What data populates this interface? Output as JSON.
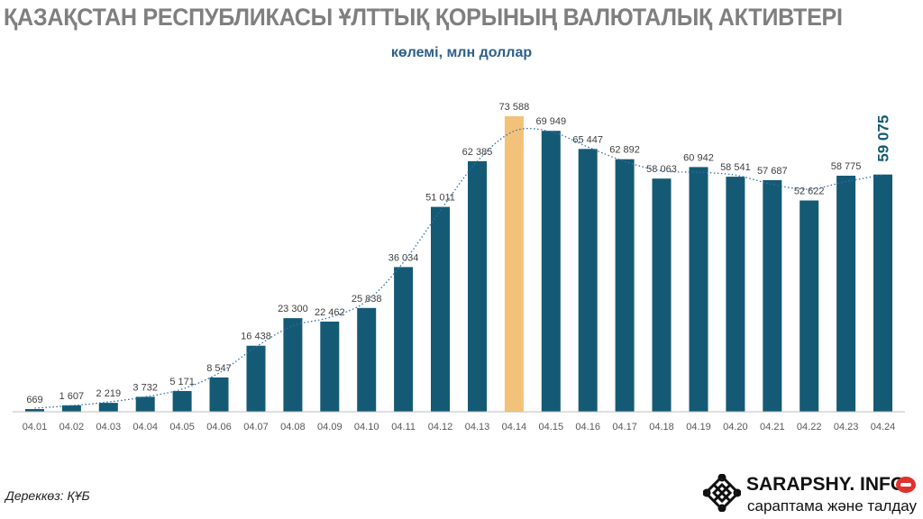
{
  "header": {
    "title": "ҚАЗАҚСТАН РЕСПУБЛИКАСЫ ҰЛТТЫҚ ҚОРЫНЫҢ ВАЛЮТАЛЫҚ АКТИВТЕРІ",
    "subtitle": "көлемі, млн доллар"
  },
  "footer": {
    "source": "Дереккөз: ҚҰБ",
    "brand_name": "SARAPSHY. INFO",
    "brand_tagline": "сарaптама және талдау"
  },
  "colors": {
    "bar": "#155a74",
    "highlight": "#f2c27a",
    "trend": "#2f6fb0",
    "title": "#7f7f7f",
    "subtitle": "#2e5f8a"
  },
  "chart_data": {
    "type": "bar",
    "categories": [
      "04.01",
      "04.02",
      "04.03",
      "04.04",
      "04.05",
      "04.06",
      "04.07",
      "04.08",
      "04.09",
      "04.10",
      "04.11",
      "04.12",
      "04.13",
      "04.14",
      "04.15",
      "04.16",
      "04.17",
      "04.18",
      "04.19",
      "04.20",
      "04.21",
      "04.22",
      "04.23",
      "04.24"
    ],
    "values": [
      669,
      1607,
      2219,
      3732,
      5171,
      8547,
      16438,
      23300,
      22462,
      25838,
      36034,
      51011,
      62385,
      73588,
      69949,
      65447,
      62892,
      58063,
      60942,
      58541,
      57687,
      52622,
      58775,
      59075
    ],
    "labels": [
      "669",
      "1 607",
      "2 219",
      "3 732",
      "5 171",
      "8 547",
      "16 438",
      "23 300",
      "22 462",
      "25 838",
      "36 034",
      "51 011",
      "62 385",
      "73 588",
      "69 949",
      "65 447",
      "62 892",
      "58 063",
      "60 942",
      "58 541",
      "57 687",
      "52 622",
      "58 775",
      "59 075"
    ],
    "highlight_index": 13,
    "emphasized_index": 23,
    "trendline": "dotted",
    "ylim": [
      0,
      73588
    ],
    "grid": false,
    "legend": "none"
  }
}
